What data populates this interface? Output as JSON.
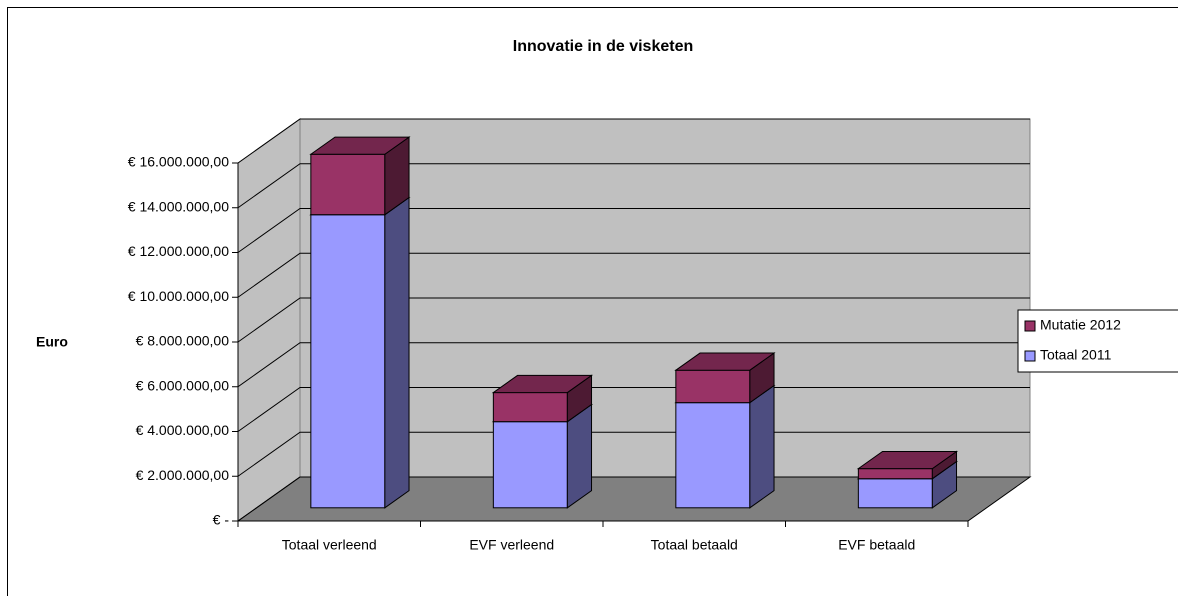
{
  "chart_data": {
    "type": "bar3d_stacked",
    "title": "Innovatie in de visketen",
    "y_axis_label": "Euro",
    "categories": [
      "Totaal verleend",
      "EVF verleend",
      "Totaal betaald",
      "EVF betaald"
    ],
    "series": [
      {
        "name": "Totaal 2011",
        "color": "#9999ff",
        "values": [
          13100000,
          3850000,
          4700000,
          1300000
        ]
      },
      {
        "name": "Mutatie 2012",
        "color": "#993366",
        "values": [
          2700000,
          1300000,
          1450000,
          450000
        ]
      }
    ],
    "ylim": [
      0,
      16000000
    ],
    "yticks": [
      {
        "value": 0,
        "label": "€ -"
      },
      {
        "value": 2000000,
        "label": "€ 2.000.000,00"
      },
      {
        "value": 4000000,
        "label": "€ 4.000.000,00"
      },
      {
        "value": 6000000,
        "label": "€ 6.000.000,00"
      },
      {
        "value": 8000000,
        "label": "€ 8.000.000,00"
      },
      {
        "value": 10000000,
        "label": "€ 10.000.000,00"
      },
      {
        "value": 12000000,
        "label": "€ 12.000.000,00"
      },
      {
        "value": 14000000,
        "label": "€ 14.000.000,00"
      },
      {
        "value": 16000000,
        "label": "€ 16.000.000,00"
      }
    ],
    "grid": true,
    "legend": "right"
  }
}
